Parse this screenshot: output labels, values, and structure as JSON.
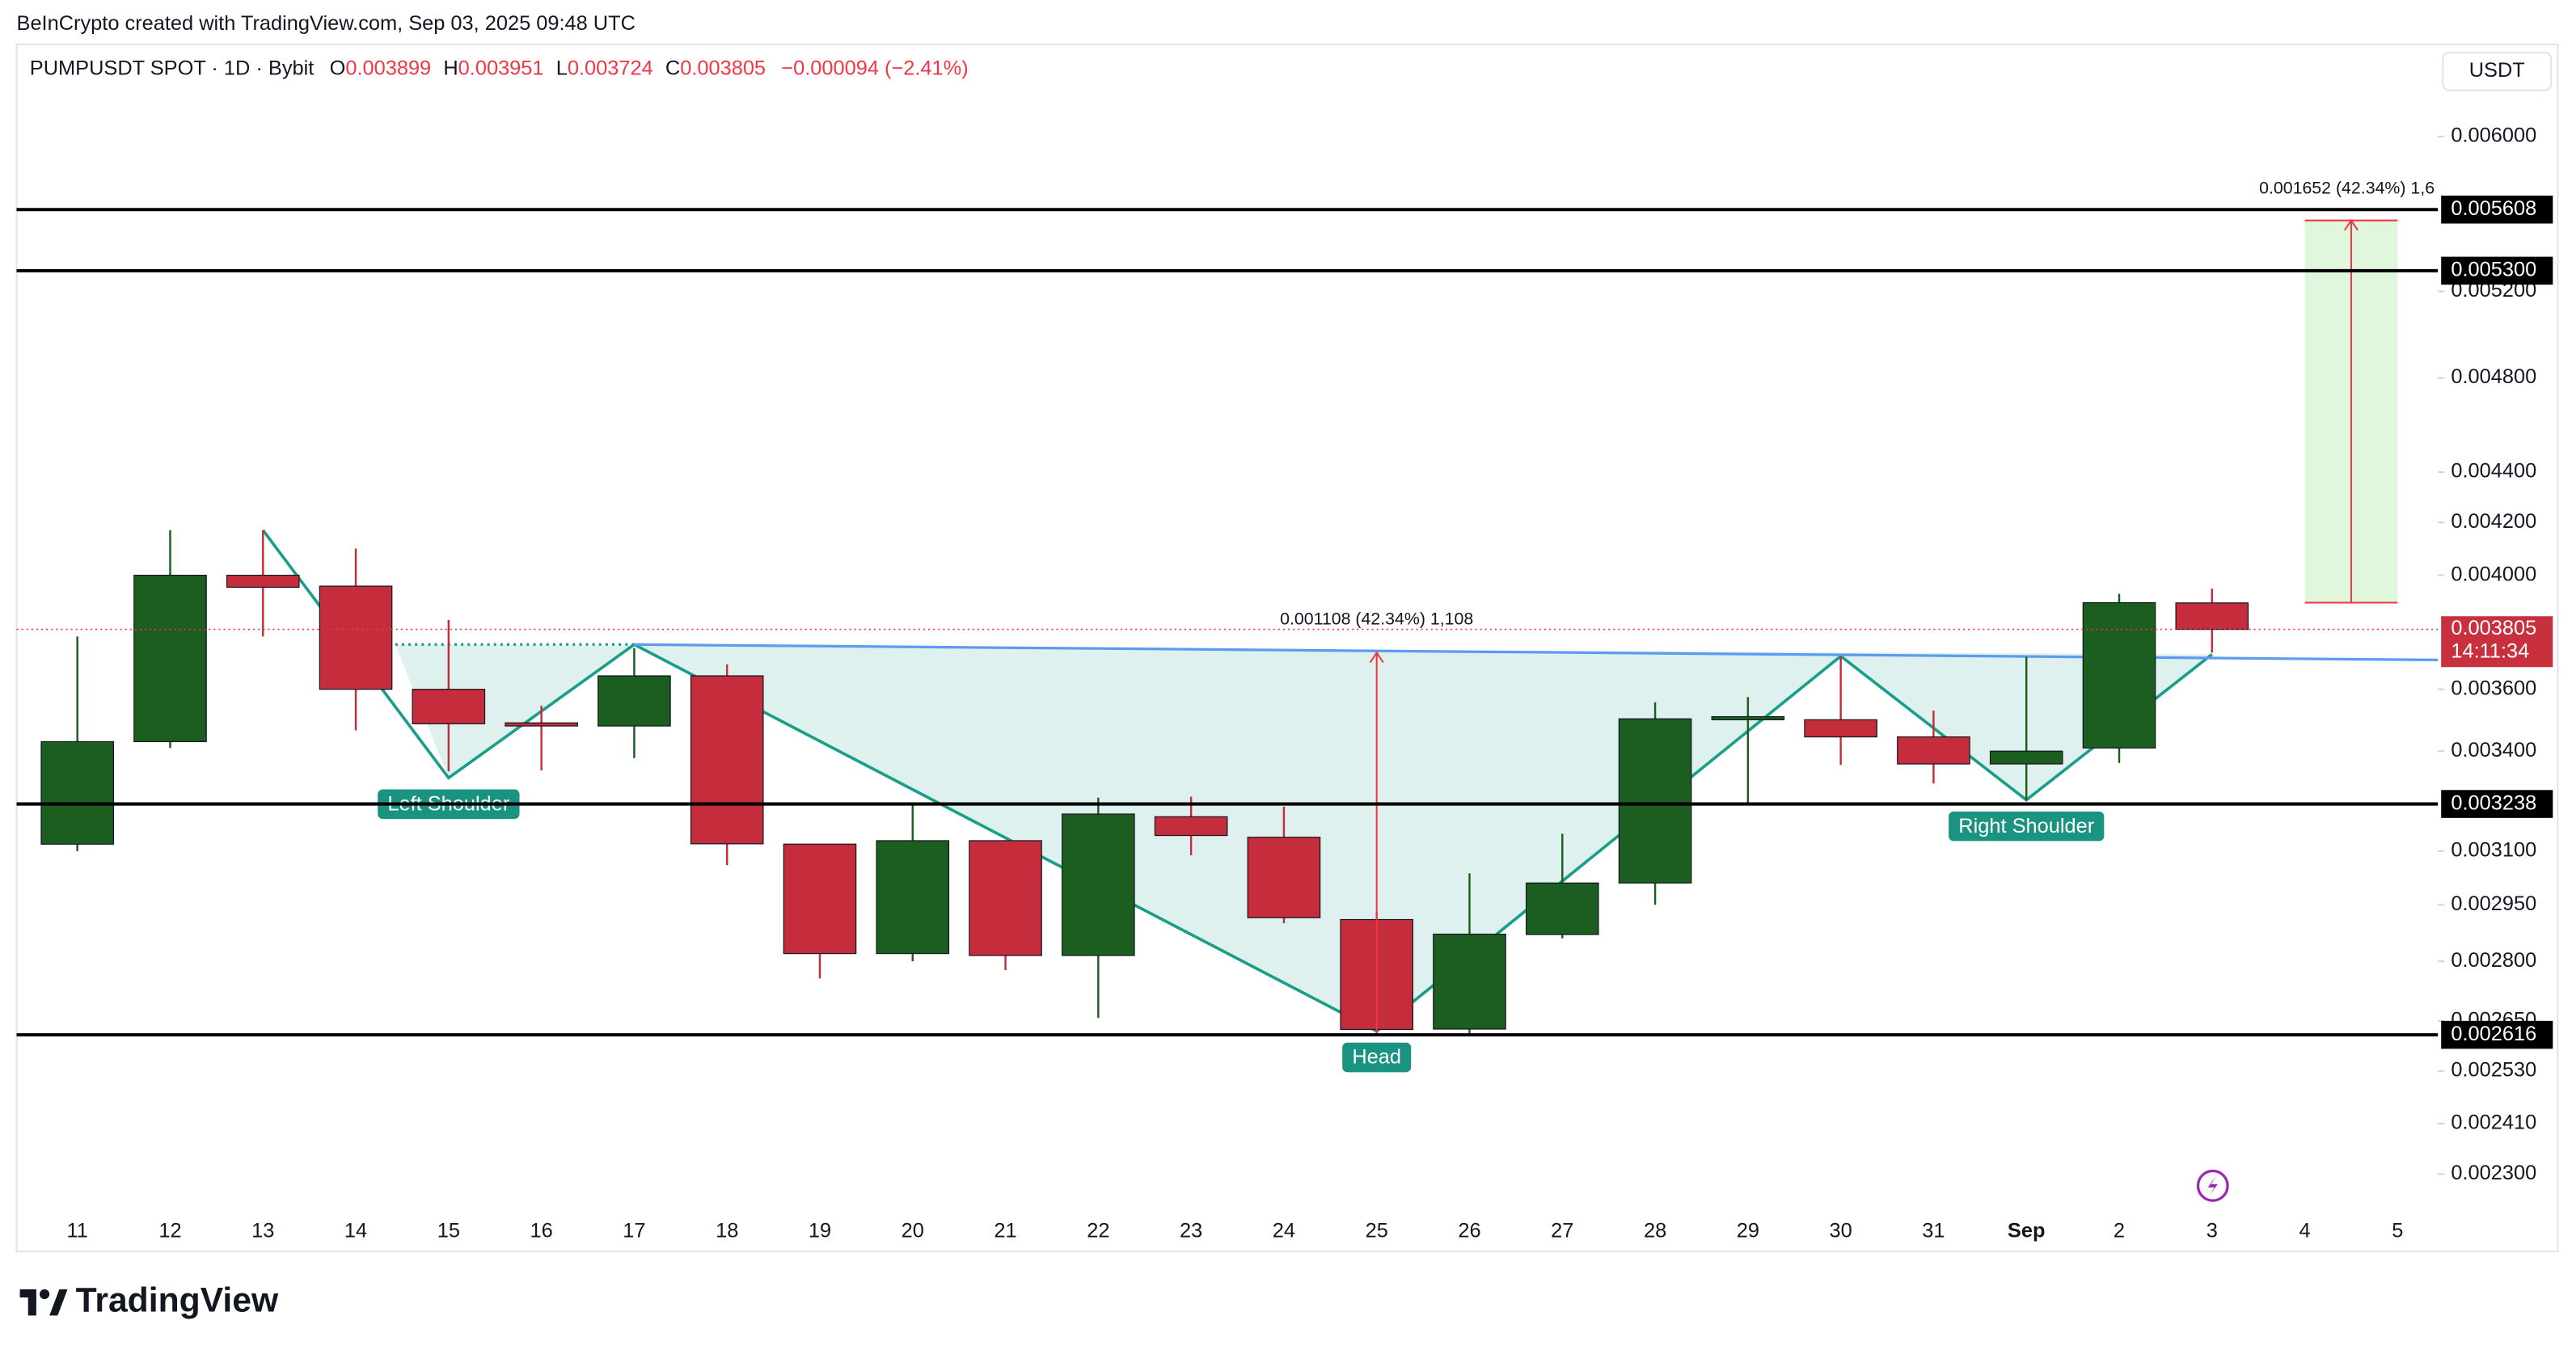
{
  "chart_data": {
    "type": "candlestick",
    "watermark": "BeInCrypto created with TradingView.com, Sep 03, 2025 09:48 UTC",
    "symbol": "PUMPUSDT SPOT · 1D · Bybit",
    "ohlc": [
      {
        "key": "O",
        "value": 0.003899
      },
      {
        "key": "H",
        "value": 0.003951
      },
      {
        "key": "L",
        "value": 0.003724
      },
      {
        "key": "C",
        "value": 0.003805
      }
    ],
    "change": "−0.000094 (−2.41%)",
    "currency": "USDT",
    "logo": "TradingView",
    "categories": [
      "11",
      "12",
      "13",
      "14",
      "15",
      "16",
      "17",
      "18",
      "19",
      "20",
      "21",
      "22",
      "23",
      "24",
      "25",
      "26",
      "27",
      "28",
      "29",
      "30",
      "31",
      "Sep",
      "2",
      "3",
      "4",
      "5"
    ],
    "open": [
      0.00312,
      0.00343,
      0.004,
      0.00396,
      0.0036,
      0.00349,
      0.00348,
      0.003645,
      0.00312,
      0.00282,
      0.00313,
      0.002815,
      0.0032,
      0.00314,
      0.00291,
      0.00263,
      0.00287,
      0.00301,
      0.0035,
      0.0035,
      0.003445,
      0.00336,
      0.00341,
      0.003899,
      null,
      null
    ],
    "high": [
      0.00378,
      0.00417,
      0.00417,
      0.0041,
      0.003838,
      0.003546,
      0.00374,
      0.003684,
      0.00312,
      0.003238,
      0.00313,
      0.003257,
      0.00326,
      0.00323,
      0.00293,
      0.003037,
      0.00315,
      0.003557,
      0.003574,
      0.003712,
      0.00353,
      0.00371,
      0.003932,
      0.003951,
      null,
      null
    ],
    "low": [
      0.0031,
      0.00341,
      0.00378,
      0.003466,
      0.003337,
      0.00334,
      0.003378,
      0.00306,
      0.002756,
      0.0028,
      0.002777,
      0.002657,
      0.003088,
      0.0029,
      0.002616,
      0.002616,
      0.00286,
      0.00295,
      0.00324,
      0.003357,
      0.0033,
      0.00325,
      0.003363,
      0.003724,
      null,
      null
    ],
    "close": [
      0.00343,
      0.004,
      0.003956,
      0.0036,
      0.003487,
      0.00348,
      0.003645,
      0.003121,
      0.00282,
      0.00313,
      0.002815,
      0.003208,
      0.003145,
      0.002915,
      0.002629,
      0.002871,
      0.00301,
      0.003503,
      0.00351,
      0.003445,
      0.00336,
      0.0034,
      0.0039,
      0.003805,
      null,
      null
    ],
    "up_color": "#1b5e20",
    "down_color": "#c62d3c",
    "log_scale": true,
    "grid": false,
    "ylim": [
      0.002231,
      0.006533
    ],
    "yticks": [
      {
        "value": 0.006,
        "label": "0.006000"
      },
      {
        "value": 0.0052,
        "label": "0.005200"
      },
      {
        "value": 0.0048,
        "label": "0.004800"
      },
      {
        "value": 0.0044,
        "label": "0.004400"
      },
      {
        "value": 0.0042,
        "label": "0.004200"
      },
      {
        "value": 0.004,
        "label": "0.004000"
      },
      {
        "value": 0.0036,
        "label": "0.003600"
      },
      {
        "value": 0.0034,
        "label": "0.003400"
      },
      {
        "value": 0.0031,
        "label": "0.003100"
      },
      {
        "value": 0.00295,
        "label": "0.002950"
      },
      {
        "value": 0.0028,
        "label": "0.002800"
      },
      {
        "value": 0.00265,
        "label": "0.002650"
      },
      {
        "value": 0.00253,
        "label": "0.002530"
      },
      {
        "value": 0.00241,
        "label": "0.002410"
      },
      {
        "value": 0.0023,
        "label": "0.002300"
      }
    ],
    "horizontal_lines": [
      {
        "value": 0.005608,
        "label": "0.005608"
      },
      {
        "value": 0.0053,
        "label": "0.005300"
      },
      {
        "value": 0.003238,
        "label": "0.003238"
      },
      {
        "value": 0.002616,
        "label": "0.002616"
      }
    ],
    "last_price": {
      "value": 0.003805,
      "label": "0.003805",
      "countdown": "14:11:34"
    },
    "pattern": {
      "points": [
        {
          "x": "13",
          "y": 0.00417
        },
        {
          "x": "15",
          "y": 0.003317,
          "label": "Left Shoulder"
        },
        {
          "x": "17",
          "y": 0.003752
        },
        {
          "x": "25",
          "y": 0.002625,
          "label": "Head"
        },
        {
          "x": "30",
          "y": 0.003712
        },
        {
          "x": "Sep",
          "y": 0.00325,
          "label": "Right Shoulder"
        },
        {
          "x": "3",
          "y": 0.003718
        }
      ],
      "neckline": [
        {
          "x": "17",
          "y": 0.003752
        },
        {
          "x": "5",
          "y": 0.0037
        }
      ]
    },
    "measures": [
      {
        "label": "0.001108 (42.34%) 1,108",
        "x": [
          "25",
          "25"
        ],
        "from": 0.002616,
        "to": 0.003724
      },
      {
        "label": "0.001652 (42.34%) 1,6",
        "x": [
          "4",
          "5"
        ],
        "from": 0.0039,
        "to": 0.005552
      }
    ]
  }
}
